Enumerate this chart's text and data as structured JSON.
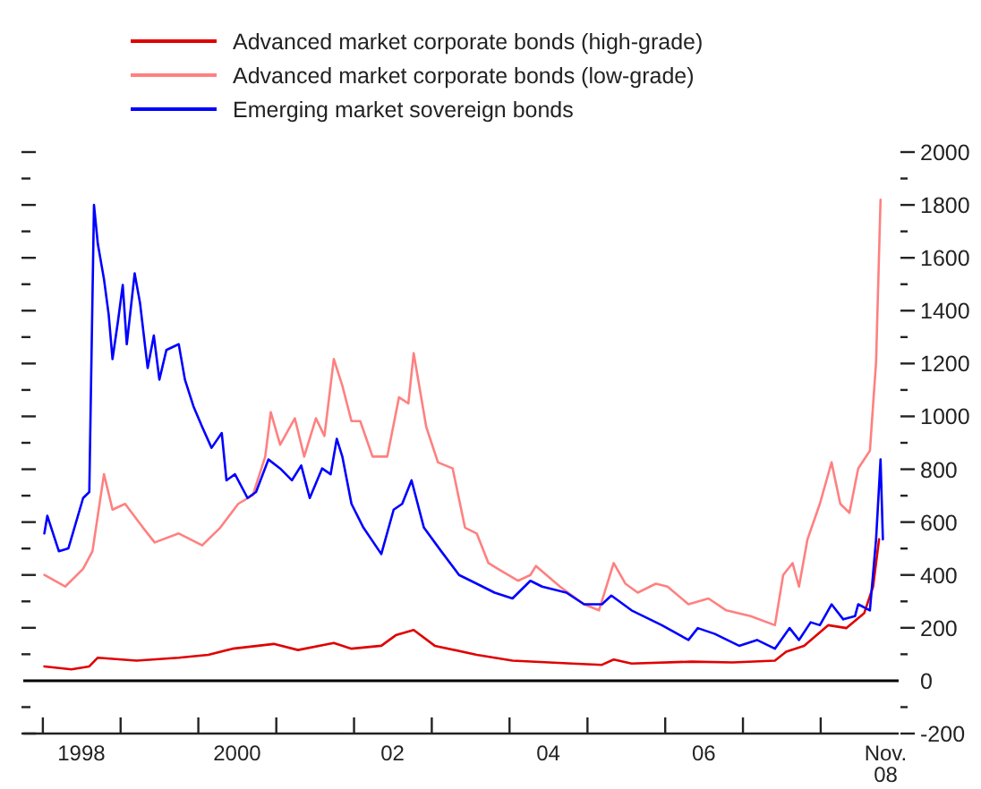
{
  "chart_data": {
    "type": "line",
    "legend": "top",
    "grid": false,
    "line_style": "solid",
    "marker": "none",
    "xlim": [
      "1997-10-01",
      "2009-01-01"
    ],
    "xticks": [
      {
        "value": "1998-01-01",
        "label": null
      },
      {
        "value": "1999-01-01",
        "label": null
      },
      {
        "value": "2000-01-01",
        "label": null
      },
      {
        "value": "2001-01-01",
        "label": null
      },
      {
        "value": "2002-01-01",
        "label": null
      },
      {
        "value": "2003-01-01",
        "label": null
      },
      {
        "value": "2004-01-01",
        "label": null
      },
      {
        "value": "2005-01-01",
        "label": null
      },
      {
        "value": "2006-01-01",
        "label": null
      },
      {
        "value": "2007-01-01",
        "label": null
      },
      {
        "value": "2008-01-01",
        "label": null
      },
      {
        "value": "1998-07-01",
        "label": "1998"
      },
      {
        "value": "2000-07-01",
        "label": "2000"
      },
      {
        "value": "2002-07-01",
        "label": "02"
      },
      {
        "value": "2004-07-01",
        "label": "04"
      },
      {
        "value": "2006-07-01",
        "label": "06"
      },
      {
        "value": "2008-11-01",
        "label": "Nov.\n08"
      }
    ],
    "ylim": [
      -200,
      2000
    ],
    "yticks": [
      -200,
      {
        "value": -100,
        "label": null
      },
      0,
      {
        "value": 100,
        "label": null
      },
      200,
      {
        "value": 300,
        "label": null
      },
      400,
      {
        "value": 500,
        "label": null
      },
      600,
      {
        "value": 700,
        "label": null
      },
      800,
      {
        "value": 900,
        "label": null
      },
      1000,
      {
        "value": 1100,
        "label": null
      },
      1200,
      {
        "value": 1300,
        "label": null
      },
      1400,
      {
        "value": 1500,
        "label": null
      },
      1600,
      {
        "value": 1700,
        "label": null
      },
      1800,
      {
        "value": 1900,
        "label": null
      },
      2000
    ],
    "ref_lines": [
      {
        "axis": "y",
        "value": 0,
        "color": "#000000"
      }
    ],
    "series": [
      {
        "name": "Advanced market corporate bonds (high-grade)",
        "color": "#e00000",
        "x": [
          "1998-01-08",
          "1998-05-15",
          "1998-08-07",
          "1998-09-16",
          "1999-03-17",
          "1999-10-01",
          "2000-02-17",
          "2000-06-10",
          "2000-12-20",
          "2001-04-13",
          "2001-09-28",
          "2001-12-20",
          "2002-05-09",
          "2002-07-16",
          "2002-10-08",
          "2003-01-15",
          "2003-07-31",
          "2004-01-15",
          "2004-10-20",
          "2005-03-10",
          "2005-05-04",
          "2005-07-27",
          "2006-05-05",
          "2006-11-14",
          "2007-05-31",
          "2007-07-23",
          "2007-10-15",
          "2008-02-06",
          "2008-05-01",
          "2008-07-23",
          "2008-09-03",
          "2008-10-01"
        ],
        "values": [
          54,
          43,
          54,
          87,
          76,
          87,
          98,
          121,
          139,
          116,
          143,
          121,
          132,
          172,
          192,
          132,
          98,
          76,
          65,
          60,
          80,
          65,
          72,
          69,
          76,
          110,
          132,
          210,
          199,
          255,
          356,
          535
        ]
      },
      {
        "name": "Advanced market corporate bonds (low-grade)",
        "color": "#ff8080",
        "x": [
          "1998-01-08",
          "1998-04-16",
          "1998-07-09",
          "1998-08-22",
          "1998-10-15",
          "1998-11-24",
          "1999-01-22",
          "1999-04-16",
          "1999-06-10",
          "1999-10-01",
          "2000-01-19",
          "2000-04-13",
          "2000-07-06",
          "2000-09-13",
          "2000-11-10",
          "2000-12-06",
          "2001-01-19",
          "2001-03-29",
          "2001-05-12",
          "2001-07-06",
          "2001-08-15",
          "2001-09-28",
          "2001-11-07",
          "2001-12-20",
          "2002-01-30",
          "2002-03-29",
          "2002-06-06",
          "2002-07-31",
          "2002-09-13",
          "2002-10-08",
          "2002-12-06",
          "2003-01-30",
          "2003-04-09",
          "2003-06-06",
          "2003-07-31",
          "2003-09-24",
          "2003-11-07",
          "2004-02-10",
          "2004-04-08",
          "2004-05-04",
          "2004-08-25",
          "2004-12-16",
          "2005-02-24",
          "2005-05-04",
          "2005-06-28",
          "2005-08-25",
          "2005-11-18",
          "2006-01-12",
          "2006-04-20",
          "2006-07-23",
          "2006-10-15",
          "2007-02-06",
          "2007-05-31",
          "2007-07-09",
          "2007-08-22",
          "2007-09-21",
          "2007-10-31",
          "2007-12-28",
          "2008-02-21",
          "2008-04-02",
          "2008-05-15",
          "2008-06-25",
          "2008-08-19",
          "2008-09-17",
          "2008-10-08"
        ],
        "values": [
          400,
          356,
          423,
          490,
          781,
          647,
          669,
          579,
          523,
          557,
          512,
          579,
          669,
          702,
          848,
          1016,
          893,
          993,
          848,
          993,
          926,
          1217,
          1116,
          982,
          982,
          848,
          848,
          1072,
          1049,
          1239,
          960,
          826,
          803,
          579,
          557,
          445,
          423,
          378,
          400,
          434,
          356,
          289,
          266,
          445,
          367,
          333,
          367,
          356,
          289,
          311,
          266,
          244,
          210,
          400,
          445,
          356,
          535,
          669,
          826,
          669,
          635,
          803,
          870,
          1206,
          1820
        ]
      },
      {
        "name": "Emerging market sovereign bonds",
        "color": "#0000ff",
        "x": [
          "1998-01-08",
          "1998-01-22",
          "1998-03-17",
          "1998-05-01",
          "1998-07-09",
          "1998-08-07",
          "1998-08-29",
          "1998-09-16",
          "1998-10-15",
          "1998-11-06",
          "1998-11-24",
          "1998-12-20",
          "1999-01-11",
          "1999-01-30",
          "1999-03-08",
          "1999-04-02",
          "1999-05-08",
          "1999-06-06",
          "1999-07-02",
          "1999-08-04",
          "1999-10-01",
          "1999-10-30",
          "1999-12-09",
          "2000-01-19",
          "2000-03-03",
          "2000-04-20",
          "2000-05-12",
          "2000-06-21",
          "2000-08-19",
          "2000-09-28",
          "2000-11-25",
          "2001-01-19",
          "2001-03-15",
          "2001-04-28",
          "2001-06-07",
          "2001-08-04",
          "2001-09-13",
          "2001-10-12",
          "2001-11-07",
          "2001-12-20",
          "2002-02-14",
          "2002-05-09",
          "2002-07-06",
          "2002-08-15",
          "2002-09-28",
          "2002-11-25",
          "2003-02-14",
          "2003-05-09",
          "2003-07-31",
          "2003-10-23",
          "2004-01-15",
          "2004-04-08",
          "2004-06-02",
          "2004-09-24",
          "2004-12-16",
          "2005-03-10",
          "2005-04-23",
          "2005-07-27",
          "2005-12-16",
          "2006-04-20",
          "2006-06-03",
          "2006-08-22",
          "2006-12-14",
          "2007-03-08",
          "2007-05-31",
          "2007-08-08",
          "2007-09-21",
          "2007-11-15",
          "2007-12-28",
          "2008-02-21",
          "2008-04-16",
          "2008-06-10",
          "2008-06-25",
          "2008-08-19",
          "2008-09-17",
          "2008-10-08",
          "2008-10-19"
        ],
        "values": [
          557,
          624,
          490,
          501,
          691,
          714,
          1800,
          1653,
          1519,
          1385,
          1217,
          1362,
          1497,
          1273,
          1541,
          1430,
          1183,
          1306,
          1139,
          1251,
          1273,
          1139,
          1038,
          960,
          881,
          937,
          758,
          781,
          691,
          714,
          837,
          803,
          758,
          814,
          691,
          803,
          781,
          915,
          848,
          669,
          579,
          479,
          647,
          669,
          758,
          579,
          490,
          400,
          367,
          333,
          311,
          378,
          356,
          333,
          289,
          289,
          322,
          266,
          210,
          154,
          199,
          177,
          132,
          154,
          121,
          199,
          154,
          221,
          210,
          289,
          232,
          244,
          289,
          266,
          535,
          837,
          535
        ]
      }
    ]
  }
}
